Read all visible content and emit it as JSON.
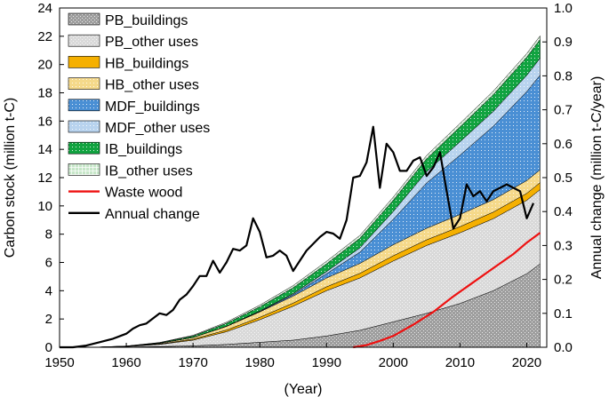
{
  "chart_data": {
    "type": "area",
    "x_label": "(Year)",
    "y_label_left": "Carbon stock (million t-C)",
    "y_label_right": "Annual change (million t-C/year)",
    "x_ticks": [
      1950,
      1960,
      1970,
      1980,
      1990,
      2000,
      2010,
      2020
    ],
    "y_ticks_left": [
      0,
      2,
      4,
      6,
      8,
      10,
      12,
      14,
      16,
      18,
      20,
      22,
      24
    ],
    "y_ticks_right": [
      "0.0",
      "0.1",
      "0.2",
      "0.3",
      "0.4",
      "0.5",
      "0.6",
      "0.7",
      "0.8",
      "0.9",
      "1.0"
    ],
    "xlim": [
      1950,
      2023
    ],
    "ylim_left": [
      0,
      24
    ],
    "ylim_right": [
      0,
      1.0
    ],
    "legend_position": "top-left",
    "x": [
      1950,
      1955,
      1960,
      1965,
      1970,
      1975,
      1980,
      1985,
      1990,
      1995,
      2000,
      2005,
      2010,
      2015,
      2020,
      2022
    ],
    "stack_series": [
      {
        "name": "PB_buildings",
        "color": "#9e9e9e",
        "pattern": "dots-dense",
        "values": [
          0,
          0,
          0.02,
          0.05,
          0.1,
          0.2,
          0.35,
          0.5,
          0.8,
          1.2,
          1.8,
          2.4,
          3.1,
          4.0,
          5.2,
          5.9
        ]
      },
      {
        "name": "PB_other uses",
        "color": "#d9d9d9",
        "pattern": "dots-dense",
        "values": [
          0,
          0,
          0.03,
          0.15,
          0.4,
          0.9,
          1.6,
          2.4,
          3.2,
          3.7,
          4.3,
          4.8,
          5.0,
          5.1,
          5.2,
          5.25
        ]
      },
      {
        "name": "HB_buildings",
        "color": "#f5b000",
        "pattern": "solid",
        "values": [
          0,
          0,
          0.01,
          0.03,
          0.07,
          0.12,
          0.17,
          0.22,
          0.28,
          0.33,
          0.37,
          0.4,
          0.43,
          0.46,
          0.49,
          0.5
        ]
      },
      {
        "name": "HB_other uses",
        "color": "#f5d98a",
        "pattern": "dots",
        "values": [
          0,
          0,
          0.01,
          0.05,
          0.12,
          0.25,
          0.38,
          0.5,
          0.62,
          0.7,
          0.78,
          0.82,
          0.86,
          0.88,
          0.9,
          0.9
        ]
      },
      {
        "name": "MDF_buildings",
        "color": "#4a8fd4",
        "pattern": "dots",
        "values": [
          0,
          0,
          0,
          0,
          0,
          0.01,
          0.03,
          0.1,
          0.3,
          0.8,
          1.8,
          3.2,
          4.2,
          5.2,
          6.3,
          6.7
        ]
      },
      {
        "name": "MDF_other uses",
        "color": "#b8d3ee",
        "pattern": "dots",
        "values": [
          0,
          0,
          0,
          0,
          0,
          0.01,
          0.03,
          0.07,
          0.15,
          0.3,
          0.55,
          0.8,
          0.95,
          1.05,
          1.15,
          1.2
        ]
      },
      {
        "name": "IB_buildings",
        "color": "#11a340",
        "pattern": "dots",
        "values": [
          0,
          0,
          0.01,
          0.04,
          0.1,
          0.2,
          0.3,
          0.42,
          0.55,
          0.68,
          0.8,
          0.92,
          1.05,
          1.18,
          1.28,
          1.32
        ]
      },
      {
        "name": "IB_other uses",
        "color": "#c6e6c8",
        "pattern": "grid",
        "values": [
          0,
          0,
          0.01,
          0.02,
          0.05,
          0.08,
          0.12,
          0.15,
          0.18,
          0.2,
          0.22,
          0.23,
          0.24,
          0.25,
          0.26,
          0.26
        ]
      }
    ],
    "waste_wood": {
      "name": "Waste wood",
      "color": "#ee1111",
      "x": [
        1994,
        1996,
        1998,
        2000,
        2003,
        2006,
        2009,
        2012,
        2015,
        2018,
        2020,
        2022
      ],
      "values": [
        0,
        0.15,
        0.45,
        0.8,
        1.6,
        2.5,
        3.6,
        4.6,
        5.6,
        6.6,
        7.4,
        8.1
      ]
    },
    "annual_change": {
      "name": "Annual change",
      "color": "#000000",
      "axis": "right",
      "x": [
        1950,
        1952,
        1954,
        1956,
        1958,
        1960,
        1961,
        1962,
        1963,
        1964,
        1965,
        1966,
        1967,
        1968,
        1969,
        1970,
        1971,
        1972,
        1973,
        1974,
        1975,
        1976,
        1977,
        1978,
        1979,
        1980,
        1981,
        1982,
        1983,
        1984,
        1985,
        1986,
        1987,
        1988,
        1989,
        1990,
        1991,
        1992,
        1993,
        1994,
        1995,
        1996,
        1997,
        1998,
        1999,
        2000,
        2001,
        2002,
        2003,
        2004,
        2005,
        2006,
        2007,
        2008,
        2009,
        2010,
        2011,
        2012,
        2013,
        2014,
        2015,
        2016,
        2017,
        2018,
        2019,
        2020,
        2021
      ],
      "values": [
        0,
        0,
        0.005,
        0.015,
        0.025,
        0.04,
        0.055,
        0.065,
        0.07,
        0.085,
        0.1,
        0.095,
        0.11,
        0.14,
        0.155,
        0.18,
        0.21,
        0.21,
        0.255,
        0.22,
        0.25,
        0.29,
        0.285,
        0.3,
        0.38,
        0.34,
        0.265,
        0.27,
        0.285,
        0.27,
        0.225,
        0.255,
        0.285,
        0.305,
        0.325,
        0.34,
        0.335,
        0.32,
        0.375,
        0.5,
        0.505,
        0.545,
        0.65,
        0.47,
        0.6,
        0.575,
        0.52,
        0.52,
        0.55,
        0.56,
        0.505,
        0.53,
        0.575,
        0.46,
        0.35,
        0.38,
        0.48,
        0.445,
        0.46,
        0.43,
        0.46,
        0.47,
        0.48,
        0.47,
        0.46,
        0.38,
        0.425
      ]
    }
  }
}
